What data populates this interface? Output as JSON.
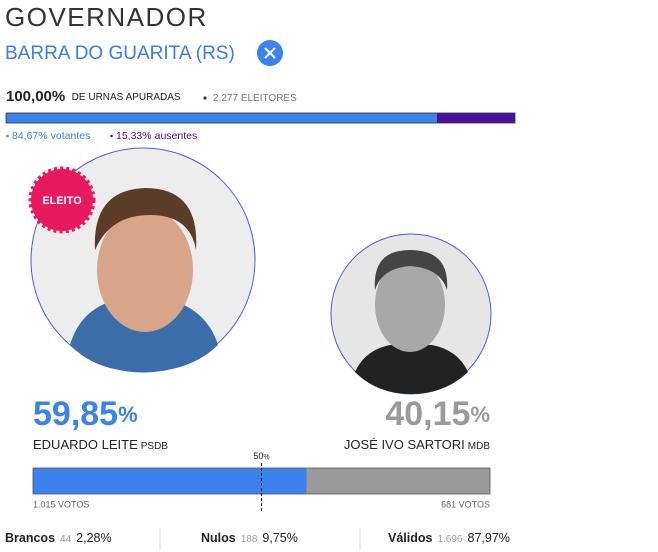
{
  "header": {
    "title": "GOVERNADOR",
    "location": "BARRA DO GUARITA (RS)"
  },
  "apuracao": {
    "percent": "100,00%",
    "label": "DE URNAS APURADAS",
    "electors": "2.277",
    "electors_label": "ELEITORES"
  },
  "turnout": {
    "voters": {
      "value": 84.67,
      "label": "84,67%",
      "text": "votantes",
      "color": "#3b82ec"
    },
    "absent": {
      "value": 15.33,
      "label": "15,33%",
      "text": "ausentes",
      "color": "#4a0f9c"
    }
  },
  "candidates": [
    {
      "name": "EDUARDO LEITE",
      "party": "PSDB",
      "value": 59.85,
      "pct_label": "59,85",
      "pct_unit": "%",
      "votes": "1.015 VOTOS",
      "badge": "ELEITO",
      "color": "#3b82ec"
    },
    {
      "name": "JOSÉ IVO SARTORI",
      "party": "MDB",
      "value": 40.15,
      "pct_label": "40,15",
      "pct_unit": "%",
      "votes": "681 VOTOS",
      "color": "#9a9a9a"
    }
  ],
  "midpoint": {
    "value": 50,
    "label": "50",
    "unit": "%"
  },
  "summary": [
    {
      "label": "Brancos",
      "votes": "44",
      "percent": "2,28%"
    },
    {
      "label": "Nulos",
      "votes": "188",
      "percent": "9,75%"
    },
    {
      "label": "Válidos",
      "votes": "1.696",
      "percent": "87,97%"
    }
  ]
}
